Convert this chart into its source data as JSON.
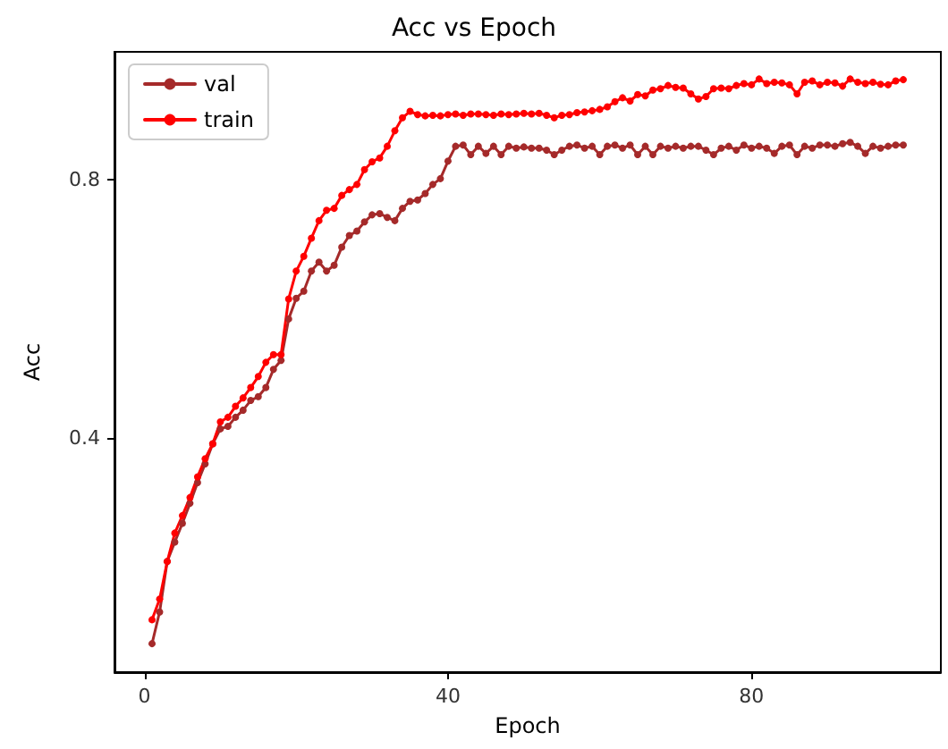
{
  "chart_data": {
    "type": "line",
    "title": "Acc vs Epoch",
    "xlabel": "Epoch",
    "ylabel": "Acc",
    "x": [
      1,
      2,
      3,
      4,
      5,
      6,
      7,
      8,
      9,
      10,
      11,
      12,
      13,
      14,
      15,
      16,
      17,
      18,
      19,
      20,
      21,
      22,
      23,
      24,
      25,
      26,
      27,
      28,
      29,
      30,
      31,
      32,
      33,
      34,
      35,
      36,
      37,
      38,
      39,
      40,
      41,
      42,
      43,
      44,
      45,
      46,
      47,
      48,
      49,
      50,
      51,
      52,
      53,
      54,
      55,
      56,
      57,
      58,
      59,
      60,
      61,
      62,
      63,
      64,
      65,
      66,
      67,
      68,
      69,
      70,
      71,
      72,
      73,
      74,
      75,
      76,
      77,
      78,
      79,
      80,
      81,
      82,
      83,
      84,
      85,
      86,
      87,
      88,
      89,
      90,
      91,
      92,
      93,
      94,
      95,
      96,
      97,
      98,
      99,
      100
    ],
    "series": [
      {
        "name": "val",
        "color": "#a52a2a",
        "values": [
          0.082,
          0.131,
          0.209,
          0.239,
          0.268,
          0.299,
          0.331,
          0.36,
          0.391,
          0.414,
          0.418,
          0.432,
          0.443,
          0.458,
          0.464,
          0.478,
          0.506,
          0.52,
          0.584,
          0.616,
          0.627,
          0.658,
          0.672,
          0.658,
          0.667,
          0.695,
          0.713,
          0.72,
          0.734,
          0.745,
          0.747,
          0.741,
          0.736,
          0.755,
          0.766,
          0.768,
          0.778,
          0.792,
          0.801,
          0.828,
          0.851,
          0.853,
          0.838,
          0.851,
          0.84,
          0.851,
          0.838,
          0.851,
          0.848,
          0.85,
          0.848,
          0.848,
          0.845,
          0.838,
          0.845,
          0.851,
          0.853,
          0.848,
          0.851,
          0.838,
          0.851,
          0.853,
          0.848,
          0.853,
          0.838,
          0.851,
          0.838,
          0.851,
          0.848,
          0.851,
          0.848,
          0.851,
          0.851,
          0.845,
          0.838,
          0.848,
          0.851,
          0.845,
          0.853,
          0.848,
          0.851,
          0.848,
          0.84,
          0.851,
          0.853,
          0.838,
          0.851,
          0.848,
          0.853,
          0.853,
          0.851,
          0.855,
          0.857,
          0.851,
          0.84,
          0.851,
          0.848,
          0.851,
          0.853,
          0.853
        ]
      },
      {
        "name": "train",
        "color": "#ff0000",
        "values": [
          0.119,
          0.151,
          0.209,
          0.253,
          0.28,
          0.308,
          0.34,
          0.368,
          0.391,
          0.425,
          0.432,
          0.449,
          0.462,
          0.478,
          0.495,
          0.517,
          0.529,
          0.529,
          0.615,
          0.658,
          0.681,
          0.709,
          0.736,
          0.752,
          0.755,
          0.775,
          0.784,
          0.792,
          0.815,
          0.827,
          0.833,
          0.851,
          0.875,
          0.895,
          0.905,
          0.9,
          0.898,
          0.899,
          0.898,
          0.9,
          0.901,
          0.899,
          0.901,
          0.901,
          0.9,
          0.899,
          0.901,
          0.9,
          0.901,
          0.902,
          0.901,
          0.902,
          0.899,
          0.895,
          0.899,
          0.9,
          0.903,
          0.904,
          0.906,
          0.908,
          0.912,
          0.92,
          0.926,
          0.921,
          0.931,
          0.929,
          0.938,
          0.94,
          0.945,
          0.942,
          0.941,
          0.932,
          0.924,
          0.928,
          0.94,
          0.941,
          0.94,
          0.945,
          0.948,
          0.946,
          0.955,
          0.948,
          0.95,
          0.949,
          0.946,
          0.932,
          0.95,
          0.952,
          0.946,
          0.95,
          0.949,
          0.944,
          0.955,
          0.95,
          0.948,
          0.95,
          0.947,
          0.946,
          0.952,
          0.954
        ]
      }
    ],
    "xlim": [
      -3.95,
      104.95
    ],
    "xticks": [
      0,
      40,
      80
    ],
    "ylim": [
      0.038,
      0.997
    ],
    "yticks": [
      0.4,
      0.8
    ],
    "grid": false,
    "legend": "top left",
    "marker": "circle",
    "line_style": "solid"
  }
}
